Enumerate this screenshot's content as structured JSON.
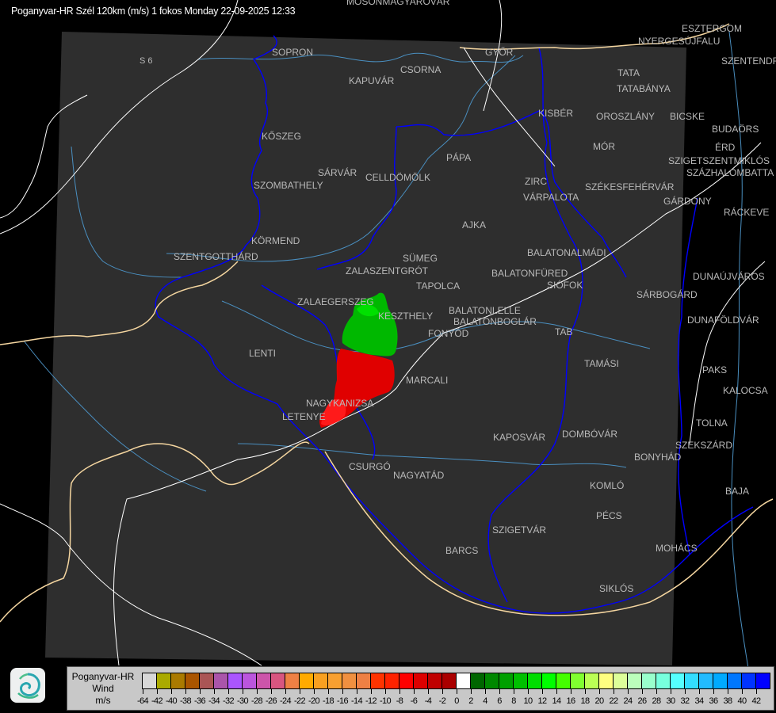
{
  "title": "Poganyvar-HR Szél 120km (m/s) 1 fokos Monday 22-09-2025 12:33",
  "map": {
    "background_color": "#000000",
    "coverage_color": "#2e2e2e",
    "border_color": "#0000ff",
    "road_color": "#ffffff",
    "river_color": "#4a8fc0",
    "state_border_color": "#f5d6a0",
    "road_labels": [
      "S 6"
    ],
    "cities": [
      "MOSONMAGYARÓVÁR",
      "SOPRON",
      "KAPUVÁR",
      "CSORNA",
      "GYŐR",
      "NYERGESÚJFALU",
      "ESZTERGOM",
      "SZENTENDRE",
      "TATA",
      "TATABÁNYA",
      "KISBÉR",
      "OROSZLÁNY",
      "BICSKE",
      "BUDAÖRS",
      "MÓR",
      "ÉRD",
      "SZIGETSZENTMIKLÓS",
      "SZÁZHALOMBATTA",
      "KŐSZEG",
      "PÁPA",
      "SÁRVÁR",
      "SZOMBATHELY",
      "CELLDÖMÖLK",
      "ZIRC",
      "VÁRPALOTA",
      "SZÉKESFEHÉRVÁR",
      "GÁRDONY",
      "RÁCKEVE",
      "AJKA",
      "KÖRMEND",
      "SZENTGOTTHÁRD",
      "BALATONALMÁDI",
      "SÜMEG",
      "ZALASZENTGRÓT",
      "BALATONFÜRED",
      "SIÓFOK",
      "DUNAÚJVÁROS",
      "TAPOLCA",
      "SÁRBOGÁRD",
      "ZALAEGERSZEG",
      "KESZTHELY",
      "BALATONLELLE",
      "BALATONBOGLÁR",
      "FONYÓD",
      "DUNAFÖLDVÁR",
      "TAB",
      "LENTI",
      "TAMÁSI",
      "PAKS",
      "MARCALI",
      "KALOCSA",
      "NAGYKANIZSA",
      "LETENYE",
      "TOLNA",
      "KAPOSVÁR",
      "DOMBÓVÁR",
      "SZEKSZÁRD",
      "BONYHÁD",
      "CSURGÓ",
      "NAGYATÁD",
      "KOMLÓ",
      "BAJA",
      "PÉCS",
      "SZIGETVÁR",
      "MOHÁCS",
      "BARCS",
      "SIKLÓS"
    ],
    "echo_colors": {
      "approaching": "#00bb00",
      "receding": "#ee0000"
    }
  },
  "legend": {
    "station": "Poganyvar-HR",
    "product": "Wind",
    "unit": "m/s",
    "labels": [
      "-64",
      "-42",
      "-40",
      "-38",
      "-36",
      "-34",
      "-32",
      "-30",
      "-28",
      "-26",
      "-24",
      "-22",
      "-20",
      "-18",
      "-16",
      "-14",
      "-12",
      "-10",
      "-8",
      "-6",
      "-4",
      "-2",
      "0",
      "2",
      "4",
      "6",
      "8",
      "10",
      "12",
      "14",
      "16",
      "18",
      "20",
      "22",
      "24",
      "26",
      "28",
      "30",
      "32",
      "34",
      "36",
      "38",
      "40",
      "42"
    ],
    "colors": [
      "#d8d8d8",
      "#aaaa00",
      "#aa7a00",
      "#aa5500",
      "#aa5555",
      "#aa55aa",
      "#aa55ff",
      "#bb55dd",
      "#cc55aa",
      "#d85580",
      "#ee8044",
      "#ffaa00",
      "#f8a020",
      "#f8a030",
      "#f09040",
      "#ee8044",
      "#ff3300",
      "#ff2200",
      "#ff0000",
      "#dd0000",
      "#c00000",
      "#aa0000",
      "#ffffff",
      "#006600",
      "#008800",
      "#00a000",
      "#00c000",
      "#00dd00",
      "#00ff00",
      "#44ff00",
      "#80ff30",
      "#bbff55",
      "#ffff80",
      "#ddff99",
      "#bbffbb",
      "#99ffcc",
      "#77ffdd",
      "#55ffff",
      "#33ddff",
      "#22bbff",
      "#00aaff",
      "#0077ff",
      "#0033ff",
      "#0000ff"
    ]
  }
}
